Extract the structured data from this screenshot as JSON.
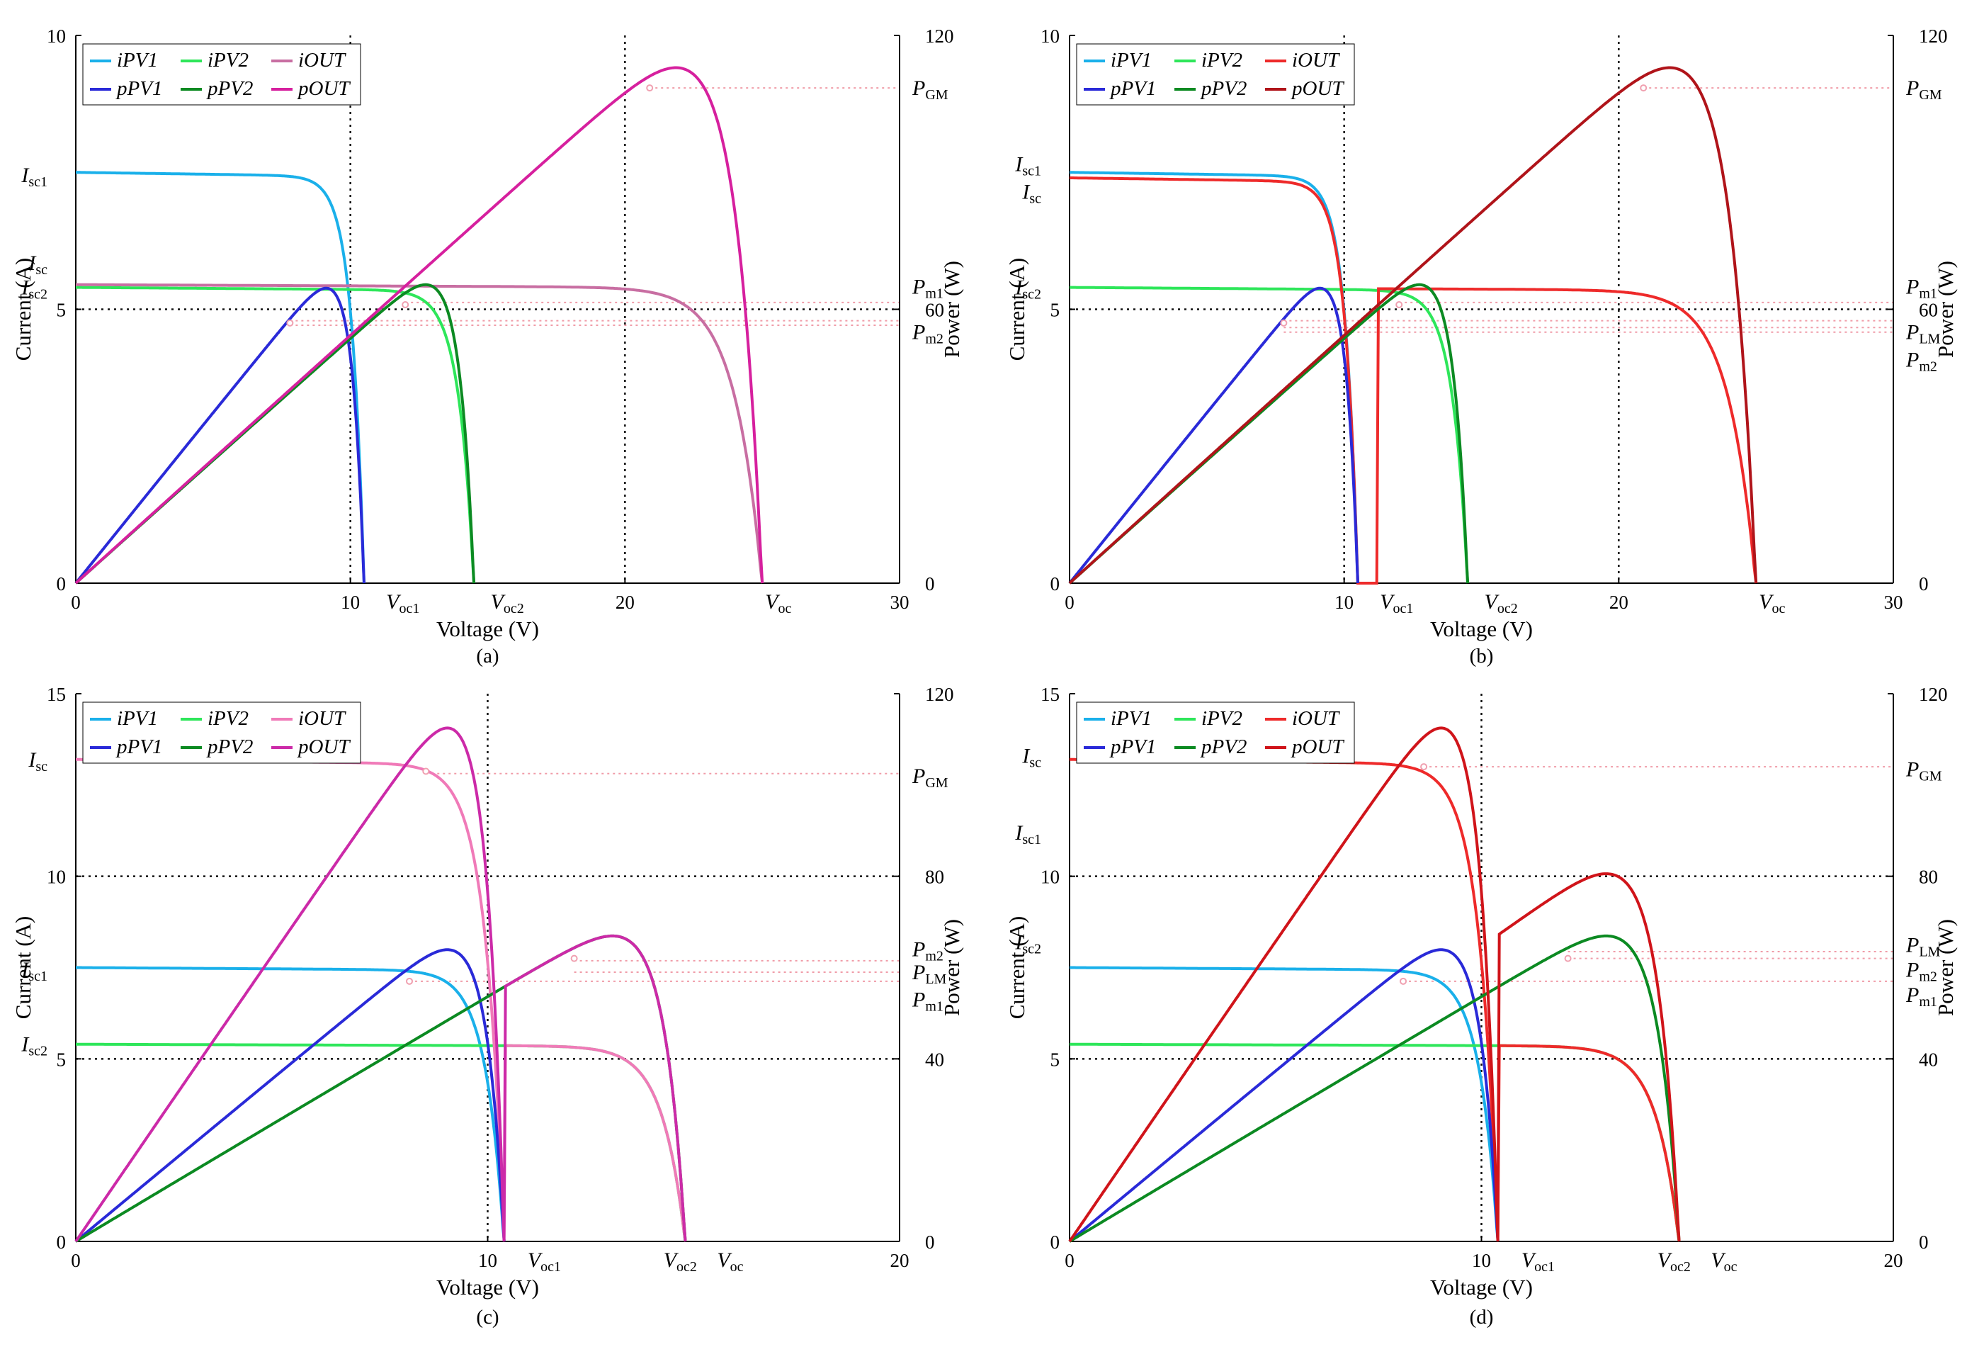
{
  "figure_title": "",
  "chart_data": [
    {
      "panel": "a",
      "caption": "(a)",
      "type": "line",
      "xlabel": "Voltage (V)",
      "ylabel": "Current (A)",
      "y2label": "Power (W)",
      "xlim": [
        0,
        30
      ],
      "ylim": [
        0,
        10
      ],
      "y2lim": [
        0,
        120
      ],
      "xticks": [
        "0",
        "10",
        "20",
        "30"
      ],
      "yticks": [
        "0",
        "5",
        "10"
      ],
      "y2ticks": [
        "0",
        "60",
        "120"
      ],
      "grid": {
        "x": [
          10,
          20
        ],
        "y": [
          5
        ]
      },
      "legend": [
        "iPV1",
        "iPV2",
        "iOUT",
        "pPV1",
        "pPV2",
        "pOUT"
      ],
      "legend_position": "top-left",
      "series": [
        {
          "name": "iPV1",
          "axis": "y",
          "color": "#1ab0ea",
          "curve": {
            "isc": 7.5,
            "voc": 10.5,
            "a": 0.45
          }
        },
        {
          "name": "iPV2",
          "axis": "y",
          "color": "#2ee65a",
          "curve": {
            "isc": 5.4,
            "voc": 14.5,
            "a": 0.55
          }
        },
        {
          "name": "iOUT",
          "axis": "y",
          "color": "#c86ea2",
          "curve": {
            "isc": 5.45,
            "voc": 25,
            "a": 1.0
          }
        },
        {
          "name": "pPV1",
          "axis": "y2",
          "color": "#2a2ad8",
          "curve": {
            "isc": 7.5,
            "voc": 10.5,
            "a": 0.45,
            "power": true
          }
        },
        {
          "name": "pPV2",
          "axis": "y2",
          "color": "#0c8a22",
          "curve": {
            "isc": 5.4,
            "voc": 14.5,
            "a": 0.55,
            "power": true
          }
        },
        {
          "name": "pOUT",
          "axis": "y2",
          "color": "#d6209e",
          "curve": {
            "isc": 5.45,
            "voc": 25,
            "a": 1.0,
            "power": true
          }
        }
      ],
      "markers": [
        {
          "x": 7.8,
          "y2": 57
        },
        {
          "x": 12.0,
          "y2": 61
        },
        {
          "x": 20.9,
          "y2": 108.5
        }
      ],
      "reference_lines": [
        {
          "axis": "y2",
          "value": 108.5,
          "from_x": 20.9
        },
        {
          "axis": "y2",
          "value": 61.5,
          "from_x": 12.0
        },
        {
          "axis": "y2",
          "value": 57.5,
          "from_x": 7.8
        },
        {
          "axis": "y2",
          "value": 56.5,
          "from_x": 7.8
        }
      ],
      "annotations_left": [
        {
          "base": "I",
          "sub": "sc1",
          "y": 7.45
        },
        {
          "base": "I",
          "sub": "sc",
          "y": 5.85
        },
        {
          "base": "I",
          "sub": "sc2",
          "y": 5.4
        }
      ],
      "annotations_right": [
        {
          "base": "P",
          "sub": "GM",
          "y2": 108.5
        },
        {
          "base": "P",
          "sub": "m1",
          "y2": 65
        },
        {
          "base": "P",
          "sub": "m2",
          "y2": 55
        }
      ],
      "annotations_x": [
        {
          "base": "V",
          "sub": "oc1",
          "x": 11.2
        },
        {
          "base": "V",
          "sub": "oc2",
          "x": 15.0
        },
        {
          "base": "V",
          "sub": "oc",
          "x": 25.0
        }
      ]
    },
    {
      "panel": "b",
      "caption": "(b)",
      "type": "line",
      "xlabel": "Voltage (V)",
      "ylabel": "Current (A)",
      "y2label": "Power (W)",
      "xlim": [
        0,
        30
      ],
      "ylim": [
        0,
        10
      ],
      "y2lim": [
        0,
        120
      ],
      "xticks": [
        "0",
        "10",
        "20",
        "30"
      ],
      "yticks": [
        "0",
        "5",
        "10"
      ],
      "y2ticks": [
        "0",
        "60",
        "120"
      ],
      "grid": {
        "x": [
          10,
          20
        ],
        "y": [
          5
        ]
      },
      "legend": [
        "iPV1",
        "iPV2",
        "iOUT",
        "pPV1",
        "pPV2",
        "pOUT"
      ],
      "legend_position": "top-left",
      "series": [
        {
          "name": "iPV1",
          "axis": "y",
          "color": "#1ab0ea",
          "curve": {
            "isc": 7.5,
            "voc": 10.5,
            "a": 0.45
          }
        },
        {
          "name": "iPV2",
          "axis": "y",
          "color": "#2ee65a",
          "curve": {
            "isc": 5.4,
            "voc": 14.5,
            "a": 0.55
          }
        },
        {
          "name": "iOUT",
          "axis": "y",
          "color": "#ee2a2a",
          "curve": {
            "isc": 7.4,
            "voc": 10.5,
            "a": 0.45
          },
          "curve2": {
            "isc": 5.4,
            "voc": 25,
            "a": 1.0,
            "xfrom": 11.2
          }
        },
        {
          "name": "pPV1",
          "axis": "y2",
          "color": "#2a2ad8",
          "curve": {
            "isc": 7.5,
            "voc": 10.5,
            "a": 0.45,
            "power": true
          }
        },
        {
          "name": "pPV2",
          "axis": "y2",
          "color": "#0c8a22",
          "curve": {
            "isc": 5.4,
            "voc": 14.5,
            "a": 0.55,
            "power": true
          }
        },
        {
          "name": "pOUT",
          "axis": "y2",
          "color": "#b0141a",
          "curve": {
            "isc": 5.45,
            "voc": 25,
            "a": 1.0,
            "power": true
          }
        }
      ],
      "markers": [
        {
          "x": 7.8,
          "y2": 57
        },
        {
          "x": 12.0,
          "y2": 61
        },
        {
          "x": 20.9,
          "y2": 108.5
        }
      ],
      "reference_lines": [
        {
          "axis": "y2",
          "value": 108.5,
          "from_x": 20.9
        },
        {
          "axis": "y2",
          "value": 61.5,
          "from_x": 12.0
        },
        {
          "axis": "y2",
          "value": 57.5,
          "from_x": 7.8
        },
        {
          "axis": "y2",
          "value": 56.0,
          "from_x": 7.8
        },
        {
          "axis": "y2",
          "value": 55.0,
          "from_x": 7.8
        }
      ],
      "annotations_left": [
        {
          "base": "I",
          "sub": "sc1",
          "y": 7.65
        },
        {
          "base": "I",
          "sub": "sc",
          "y": 7.15
        },
        {
          "base": "I",
          "sub": "sc2",
          "y": 5.4
        }
      ],
      "annotations_right": [
        {
          "base": "P",
          "sub": "GM",
          "y2": 108.5
        },
        {
          "base": "P",
          "sub": "m1",
          "y2": 65
        },
        {
          "base": "P",
          "sub": "LM",
          "y2": 55
        },
        {
          "base": "P",
          "sub": "m2",
          "y2": 49
        }
      ],
      "annotations_x": [
        {
          "base": "V",
          "sub": "oc1",
          "x": 11.2
        },
        {
          "base": "V",
          "sub": "oc2",
          "x": 15.0
        },
        {
          "base": "V",
          "sub": "oc",
          "x": 25.0
        }
      ]
    },
    {
      "panel": "c",
      "caption": "(c)",
      "type": "line",
      "xlabel": "Voltage (V)",
      "ylabel": "Current (A)",
      "y2label": "Power (W)",
      "xlim": [
        0,
        20
      ],
      "ylim": [
        0,
        15
      ],
      "y2lim": [
        0,
        120
      ],
      "xticks": [
        "0",
        "10",
        "20"
      ],
      "yticks": [
        "0",
        "5",
        "10",
        "15"
      ],
      "y2ticks": [
        "0",
        "40",
        "80",
        "120"
      ],
      "grid": {
        "x": [
          10
        ],
        "y": [
          5,
          10
        ]
      },
      "legend": [
        "iPV1",
        "iPV2",
        "iOUT",
        "pPV1",
        "pPV2",
        "pOUT"
      ],
      "legend_position": "top-left",
      "series": [
        {
          "name": "iPV1",
          "axis": "y",
          "color": "#1ab0ea",
          "curve": {
            "isc": 7.5,
            "voc": 10.4,
            "a": 0.45
          }
        },
        {
          "name": "iPV2",
          "axis": "y",
          "color": "#2ee65a",
          "curve": {
            "isc": 5.4,
            "voc": 14.8,
            "a": 0.55
          }
        },
        {
          "name": "iOUT",
          "axis": "y",
          "color": "#f07ab8",
          "curve": {
            "isc": 13.2,
            "voc": 10.4,
            "a": 0.45
          },
          "curve2": {
            "isc": 5.4,
            "voc": 14.8,
            "a": 0.55,
            "xfrom": 10.4
          }
        },
        {
          "name": "pPV1",
          "axis": "y2",
          "color": "#2a2ad8",
          "curve": {
            "isc": 7.5,
            "voc": 10.4,
            "a": 0.45,
            "power": true
          }
        },
        {
          "name": "pPV2",
          "axis": "y2",
          "color": "#0c8a22",
          "curve": {
            "isc": 5.4,
            "voc": 14.8,
            "a": 0.55,
            "power": true
          }
        },
        {
          "name": "pOUT",
          "axis": "y2",
          "color": "#cc2aa8",
          "curve": {
            "isc": 13.2,
            "voc": 10.4,
            "a": 0.45,
            "power": true
          },
          "curve2": {
            "isc": 5.4,
            "voc": 14.8,
            "a": 0.55,
            "xfrom": 10.4,
            "power": true
          }
        }
      ],
      "markers": [
        {
          "x": 8.1,
          "y2": 57
        },
        {
          "x": 12.1,
          "y2": 62
        },
        {
          "x": 8.5,
          "y2": 103
        }
      ],
      "reference_lines": [
        {
          "axis": "y2",
          "value": 102.5,
          "from_x": 8.5
        },
        {
          "axis": "y2",
          "value": 61.5,
          "from_x": 12.1
        },
        {
          "axis": "y2",
          "value": 59.0,
          "from_x": 12.1
        },
        {
          "axis": "y2",
          "value": 57.0,
          "from_x": 8.1
        }
      ],
      "annotations_left": [
        {
          "base": "I",
          "sub": "sc",
          "y": 13.2
        },
        {
          "base": "I",
          "sub": "sc1",
          "y": 7.45
        },
        {
          "base": "I",
          "sub": "sc2",
          "y": 5.4
        }
      ],
      "annotations_right": [
        {
          "base": "P",
          "sub": "GM",
          "y2": 102
        },
        {
          "base": "P",
          "sub": "m2",
          "y2": 64
        },
        {
          "base": "P",
          "sub": "LM",
          "y2": 59
        },
        {
          "base": "P",
          "sub": "m1",
          "y2": 53
        }
      ],
      "annotations_x": [
        {
          "base": "V",
          "sub": "oc1",
          "x": 10.9
        },
        {
          "base": "V",
          "sub": "oc2",
          "x": 14.2
        },
        {
          "base": "V",
          "sub": "oc",
          "x": 15.5
        }
      ]
    },
    {
      "panel": "d",
      "caption": "(d)",
      "type": "line",
      "xlabel": "Voltage (V)",
      "ylabel": "Current (A)",
      "y2label": "Power (W)",
      "xlim": [
        0,
        20
      ],
      "ylim": [
        0,
        15
      ],
      "y2lim": [
        0,
        120
      ],
      "xticks": [
        "0",
        "10",
        "20"
      ],
      "yticks": [
        "0",
        "5",
        "10",
        "15"
      ],
      "y2ticks": [
        "0",
        "40",
        "80",
        "120"
      ],
      "grid": {
        "x": [
          10
        ],
        "y": [
          5,
          10
        ]
      },
      "legend": [
        "iPV1",
        "iPV2",
        "iOUT",
        "pPV1",
        "pPV2",
        "pOUT"
      ],
      "legend_position": "top-left",
      "series": [
        {
          "name": "iPV1",
          "axis": "y",
          "color": "#1ab0ea",
          "curve": {
            "isc": 7.5,
            "voc": 10.4,
            "a": 0.45
          }
        },
        {
          "name": "iPV2",
          "axis": "y",
          "color": "#2ee65a",
          "curve": {
            "isc": 5.4,
            "voc": 14.8,
            "a": 0.55
          }
        },
        {
          "name": "iOUT",
          "axis": "y",
          "color": "#ee2a2a",
          "curve": {
            "isc": 13.2,
            "voc": 10.4,
            "a": 0.45
          },
          "curve2": {
            "isc": 5.4,
            "voc": 14.8,
            "a": 0.55,
            "xfrom": 10.4
          }
        },
        {
          "name": "pPV1",
          "axis": "y2",
          "color": "#2a2ad8",
          "curve": {
            "isc": 7.5,
            "voc": 10.4,
            "a": 0.45,
            "power": true
          }
        },
        {
          "name": "pPV2",
          "axis": "y2",
          "color": "#0c8a22",
          "curve": {
            "isc": 5.4,
            "voc": 14.8,
            "a": 0.55,
            "power": true
          }
        },
        {
          "name": "pOUT",
          "axis": "y2",
          "color": "#d0141a",
          "curve": {
            "isc": 13.2,
            "voc": 10.4,
            "a": 0.45,
            "power": true
          },
          "curve2": {
            "isc": 6.5,
            "voc": 14.8,
            "a": 0.55,
            "xfrom": 10.4,
            "power": true
          }
        }
      ],
      "markers": [
        {
          "x": 8.1,
          "y2": 57
        },
        {
          "x": 12.1,
          "y2": 62
        },
        {
          "x": 8.6,
          "y2": 104
        }
      ],
      "reference_lines": [
        {
          "axis": "y2",
          "value": 104,
          "from_x": 8.6
        },
        {
          "axis": "y2",
          "value": 63.5,
          "from_x": 12.1
        },
        {
          "axis": "y2",
          "value": 62.0,
          "from_x": 12.1
        },
        {
          "axis": "y2",
          "value": 57.0,
          "from_x": 8.1
        }
      ],
      "annotations_left": [
        {
          "base": "I",
          "sub": "sc",
          "y": 13.3
        },
        {
          "base": "I",
          "sub": "sc1",
          "y": 11.2
        },
        {
          "base": "I",
          "sub": "sc2",
          "y": 8.2
        }
      ],
      "annotations_right": [
        {
          "base": "P",
          "sub": "GM",
          "y2": 103.5
        },
        {
          "base": "P",
          "sub": "LM",
          "y2": 65
        },
        {
          "base": "P",
          "sub": "m2",
          "y2": 59.5
        },
        {
          "base": "P",
          "sub": "m1",
          "y2": 54
        }
      ],
      "annotations_x": [
        {
          "base": "V",
          "sub": "oc1",
          "x": 10.9
        },
        {
          "base": "V",
          "sub": "oc2",
          "x": 14.2
        },
        {
          "base": "V",
          "sub": "oc",
          "x": 15.5
        }
      ]
    }
  ]
}
